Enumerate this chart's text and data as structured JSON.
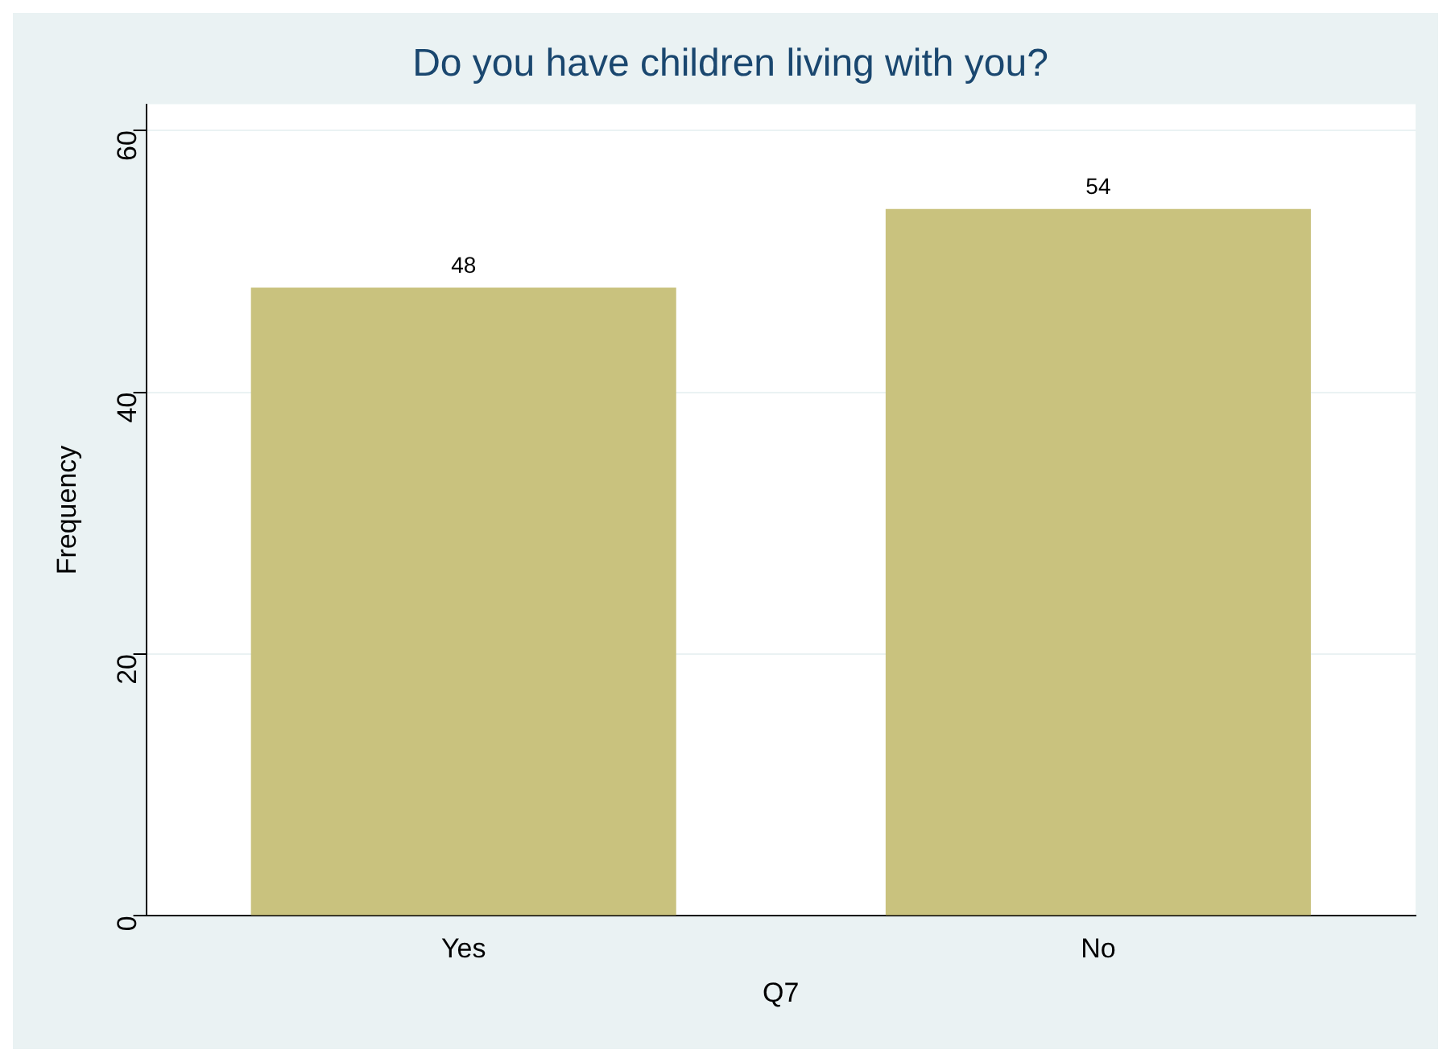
{
  "chart_data": {
    "type": "bar",
    "title": "Do you have children living with you?",
    "xlabel": "Q7",
    "ylabel": "Frequency",
    "categories": [
      "Yes",
      "No"
    ],
    "values": [
      48,
      54
    ],
    "color": "#c9c27e",
    "ylim": [
      0,
      62
    ],
    "yticks": [
      0,
      20,
      40,
      60
    ],
    "grid": "y",
    "data_labels": true
  }
}
